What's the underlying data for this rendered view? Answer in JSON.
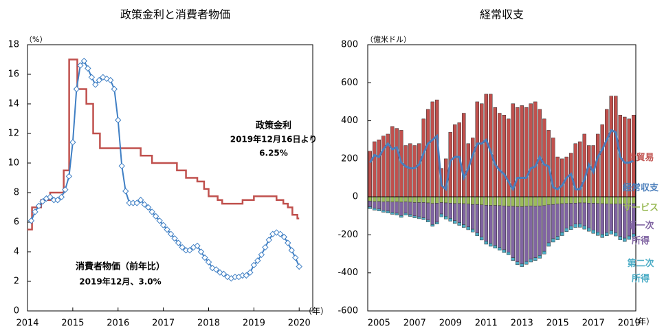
{
  "chart_data": [
    {
      "type": "line",
      "title": "政策金利と消費者物価",
      "y_unit": "（%）",
      "x_unit": "（年）",
      "xlim": [
        2014,
        2020.3
      ],
      "xticks": [
        2014,
        2015,
        2016,
        2017,
        2018,
        2019,
        2020
      ],
      "ylim": [
        0,
        18
      ],
      "yticks": [
        0,
        2,
        4,
        6,
        8,
        10,
        12,
        14,
        16,
        18
      ],
      "grid": false,
      "series": [
        {
          "name": "政策金利",
          "color": "#c0504d",
          "step": true,
          "x": [
            2014,
            2014.1,
            2014.3,
            2014.5,
            2014.8,
            2014.92,
            2015.1,
            2015.3,
            2015.45,
            2015.6,
            2016.5,
            2016.75,
            2017.3,
            2017.5,
            2017.75,
            2017.9,
            2018,
            2018.2,
            2018.3,
            2018.75,
            2019,
            2019.5,
            2019.65,
            2019.75,
            2019.85,
            2019.96,
            2020
          ],
          "values": [
            5.5,
            7,
            7.5,
            8,
            9.5,
            17,
            15,
            14,
            12,
            11,
            10.5,
            10,
            9.5,
            9,
            8.75,
            8.25,
            7.75,
            7.5,
            7.25,
            7.5,
            7.75,
            7.5,
            7.25,
            7,
            6.5,
            6.25,
            6.25
          ],
          "annotation": [
            "2019年12月16日より",
            "6.25%"
          ]
        },
        {
          "name": "消費者物価（前年比）",
          "color": "#3f7fc4",
          "marker": "diamond",
          "x": [
            2014.083,
            2014.167,
            2014.25,
            2014.333,
            2014.417,
            2014.5,
            2014.583,
            2014.667,
            2014.75,
            2014.833,
            2014.917,
            2015,
            2015.083,
            2015.167,
            2015.25,
            2015.333,
            2015.417,
            2015.5,
            2015.583,
            2015.667,
            2015.75,
            2015.833,
            2015.917,
            2016,
            2016.083,
            2016.167,
            2016.25,
            2016.333,
            2016.417,
            2016.5,
            2016.583,
            2016.667,
            2016.75,
            2016.833,
            2016.917,
            2017,
            2017.083,
            2017.167,
            2017.25,
            2017.333,
            2017.417,
            2017.5,
            2017.583,
            2017.667,
            2017.75,
            2017.833,
            2017.917,
            2018,
            2018.083,
            2018.167,
            2018.25,
            2018.333,
            2018.417,
            2018.5,
            2018.583,
            2018.667,
            2018.75,
            2018.833,
            2018.917,
            2019,
            2019.083,
            2019.167,
            2019.25,
            2019.333,
            2019.417,
            2019.5,
            2019.583,
            2019.667,
            2019.75,
            2019.833,
            2019.917,
            2020
          ],
          "values": [
            6.1,
            6.7,
            7.1,
            7.4,
            7.6,
            7.7,
            7.5,
            7.5,
            7.7,
            8.2,
            9.1,
            11.4,
            15.0,
            16.6,
            16.9,
            16.4,
            15.8,
            15.3,
            15.6,
            15.8,
            15.7,
            15.6,
            15.0,
            12.9,
            9.8,
            8.1,
            7.3,
            7.3,
            7.3,
            7.5,
            7.2,
            7.0,
            6.7,
            6.4,
            6.1,
            5.8,
            5.5,
            5.2,
            4.9,
            4.6,
            4.3,
            4.1,
            4.1,
            4.3,
            4.4,
            4.0,
            3.6,
            3.3,
            2.9,
            2.8,
            2.6,
            2.5,
            2.3,
            2.2,
            2.3,
            2.3,
            2.4,
            2.4,
            2.6,
            3.1,
            3.4,
            3.8,
            4.3,
            4.8,
            5.2,
            5.3,
            5.2,
            5.0,
            4.6,
            4.1,
            3.6,
            3.0
          ],
          "annotation": [
            "2019年12月、3.0%"
          ]
        }
      ]
    },
    {
      "type": "bar",
      "stacked": true,
      "title": "経常収支",
      "y_unit": "（億米ドル）",
      "x_unit": "（年）",
      "ylim": [
        -600,
        800
      ],
      "yticks": [
        -600,
        -400,
        -200,
        0,
        200,
        400,
        600,
        800
      ],
      "grid": false,
      "categories": [
        null,
        null,
        "2005",
        null,
        null,
        null,
        null,
        null,
        null,
        null,
        "2007",
        null,
        null,
        null,
        null,
        null,
        null,
        null,
        "2009",
        null,
        null,
        null,
        null,
        null,
        null,
        null,
        "2011",
        null,
        null,
        null,
        null,
        null,
        null,
        null,
        "2013",
        null,
        null,
        null,
        null,
        null,
        null,
        null,
        "2015",
        null,
        null,
        null,
        null,
        null,
        null,
        null,
        "2017",
        null,
        null,
        null,
        null,
        null,
        null,
        null,
        "2019",
        null
      ],
      "series": [
        {
          "name": "財貿易",
          "color": "#c0504d",
          "values": [
            240,
            290,
            300,
            320,
            330,
            370,
            360,
            350,
            270,
            280,
            270,
            280,
            410,
            460,
            500,
            510,
            150,
            200,
            340,
            380,
            390,
            440,
            280,
            310,
            500,
            490,
            540,
            540,
            470,
            440,
            430,
            410,
            490,
            470,
            480,
            470,
            490,
            500,
            460,
            410,
            350,
            310,
            210,
            200,
            210,
            230,
            280,
            290,
            330,
            270,
            270,
            330,
            380,
            460,
            530,
            530,
            430,
            420,
            410,
            430
          ]
        },
        {
          "name": "サービス",
          "color": "#9bbb59",
          "values": [
            -22,
            -25,
            -24,
            -26,
            -25,
            -27,
            -26,
            -28,
            -26,
            -28,
            -30,
            -30,
            -30,
            -32,
            -35,
            -33,
            -30,
            -32,
            -33,
            -35,
            -35,
            -36,
            -38,
            -40,
            -40,
            -42,
            -44,
            -45,
            -45,
            -46,
            -48,
            -50,
            -50,
            -52,
            -52,
            -50,
            -48,
            -50,
            -48,
            -46,
            -42,
            -40,
            -38,
            -36,
            -35,
            -34,
            -33,
            -32,
            -32,
            -33,
            -34,
            -35,
            -36,
            -37,
            -38,
            -38,
            -38,
            -37,
            -36,
            -35
          ]
        },
        {
          "name": "第一次所得",
          "color": "#8064a2",
          "values": [
            -30,
            -35,
            -40,
            -45,
            -50,
            -55,
            -60,
            -70,
            -60,
            -65,
            -70,
            -75,
            -80,
            -90,
            -110,
            -100,
            -60,
            -70,
            -80,
            -90,
            -100,
            -110,
            -120,
            -130,
            -150,
            -170,
            -190,
            -200,
            -210,
            -220,
            -230,
            -240,
            -270,
            -290,
            -300,
            -290,
            -280,
            -270,
            -260,
            -240,
            -200,
            -180,
            -170,
            -150,
            -130,
            -120,
            -110,
            -110,
            -120,
            -130,
            -140,
            -150,
            -160,
            -150,
            -140,
            -150,
            -170,
            -180,
            -170,
            -160
          ]
        },
        {
          "name": "第二次所得",
          "color": "#4bacc6",
          "values": [
            -10,
            -10,
            -10,
            -10,
            -10,
            -10,
            -10,
            -10,
            -10,
            -10,
            -10,
            -10,
            -10,
            -10,
            -10,
            -10,
            -15,
            -15,
            -15,
            -15,
            -15,
            -15,
            -15,
            -15,
            -15,
            -15,
            -15,
            -15,
            -15,
            -15,
            -15,
            -15,
            -15,
            -15,
            -15,
            -15,
            -15,
            -15,
            -15,
            -15,
            -18,
            -18,
            -18,
            -18,
            -18,
            -18,
            -18,
            -18,
            -18,
            -18,
            -18,
            -18,
            -18,
            -18,
            -18,
            -18,
            -18,
            -18,
            -18,
            -18
          ]
        },
        {
          "name": "経常収支",
          "color": "#4a7ebb",
          "type": "line",
          "values": [
            180,
            220,
            210,
            250,
            280,
            250,
            260,
            180,
            160,
            150,
            150,
            170,
            230,
            280,
            300,
            320,
            60,
            40,
            190,
            210,
            210,
            100,
            150,
            220,
            280,
            280,
            300,
            240,
            170,
            140,
            120,
            80,
            40,
            100,
            100,
            100,
            150,
            160,
            210,
            170,
            160,
            50,
            40,
            60,
            100,
            120,
            40,
            40,
            90,
            170,
            130,
            210,
            250,
            300,
            350,
            340,
            210,
            180,
            180,
            190
          ]
        }
      ]
    }
  ]
}
